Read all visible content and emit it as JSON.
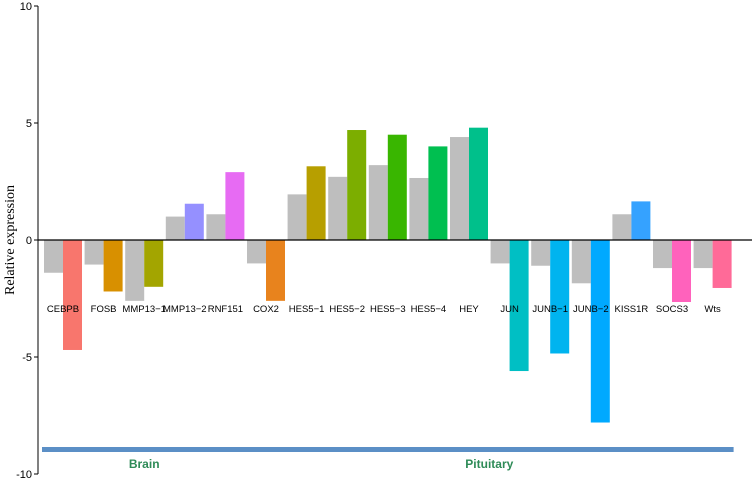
{
  "chart_data": {
    "type": "bar",
    "ylabel": "Relative expression",
    "ylim": [
      -10,
      10
    ],
    "yticks": [
      10,
      5,
      0,
      -5,
      -10
    ],
    "control_color": "#bebebe",
    "bracket_color": "#5b8fc6",
    "group_label_color": "#2e8b57",
    "categories": [
      "CEBPB",
      "FOSB",
      "MMP13−1",
      "MMP13−2",
      "RNF151",
      "COX2",
      "HES5−1",
      "HES5−2",
      "HES5−3",
      "HES5−4",
      "HEY",
      "JUN",
      "JUNB−1",
      "JUNB−2",
      "KISS1R",
      "SOCS3",
      "Wts"
    ],
    "series": [
      {
        "values": [
          -1.4,
          -1.05,
          -2.6,
          1.0,
          1.1,
          -1.0,
          1.95,
          2.7,
          3.2,
          2.65,
          4.4,
          -1.0,
          -1.1,
          -1.85,
          1.1,
          -1.2,
          -1.2
        ]
      },
      {
        "values": [
          -4.7,
          -2.2,
          -2.0,
          1.55,
          2.9,
          -2.6,
          3.15,
          4.7,
          4.5,
          4.0,
          4.8,
          -5.6,
          -4.85,
          -7.8,
          1.65,
          -2.65,
          -2.05
        ]
      }
    ],
    "colors": [
      "#f8766d",
      "#d89000",
      "#a3a500",
      "#9590ff",
      "#e76bf3",
      "#e8831d",
      "#b79f00",
      "#7cae00",
      "#39b600",
      "#00bf50",
      "#00c08b",
      "#00bfc4",
      "#00b4ef",
      "#00a9ff",
      "#35a2ff",
      "#ff62bc",
      "#ff6a98"
    ],
    "groups": [
      {
        "label": "Brain",
        "first": 0,
        "last": 4
      },
      {
        "label": "Pituitary",
        "first": 5,
        "last": 16
      }
    ]
  }
}
